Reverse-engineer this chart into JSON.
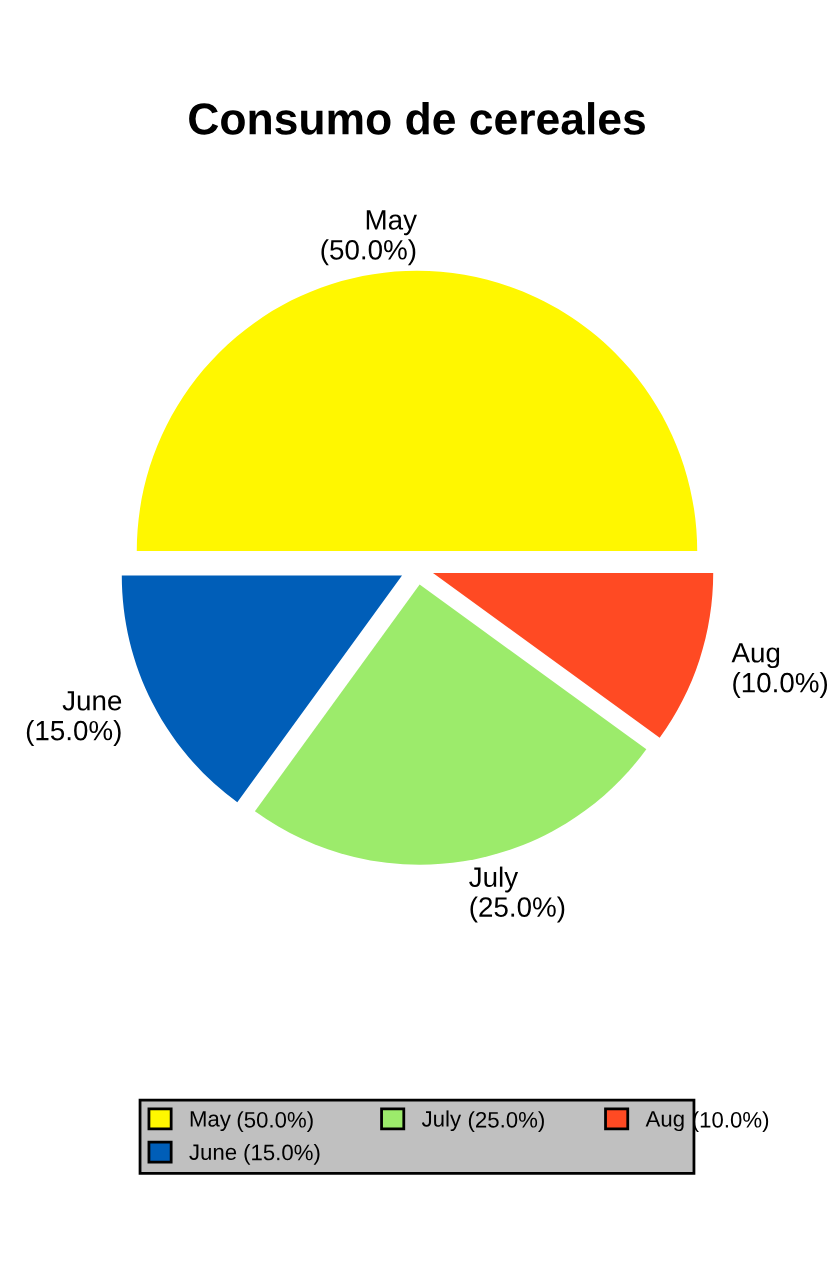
{
  "chart_data": {
    "type": "pie",
    "title": "Consumo de cereales",
    "categories": [
      "May",
      "June",
      "July",
      "Aug"
    ],
    "values": [
      50,
      15,
      25,
      10
    ],
    "value_labels": [
      "(50.0%)",
      "(15.0%)",
      "(25.0%)",
      "(10.0%)"
    ],
    "colors": [
      "#fff700",
      "#005eb8",
      "#9ceb6b",
      "#ff4a23"
    ],
    "legend": "bottom"
  }
}
